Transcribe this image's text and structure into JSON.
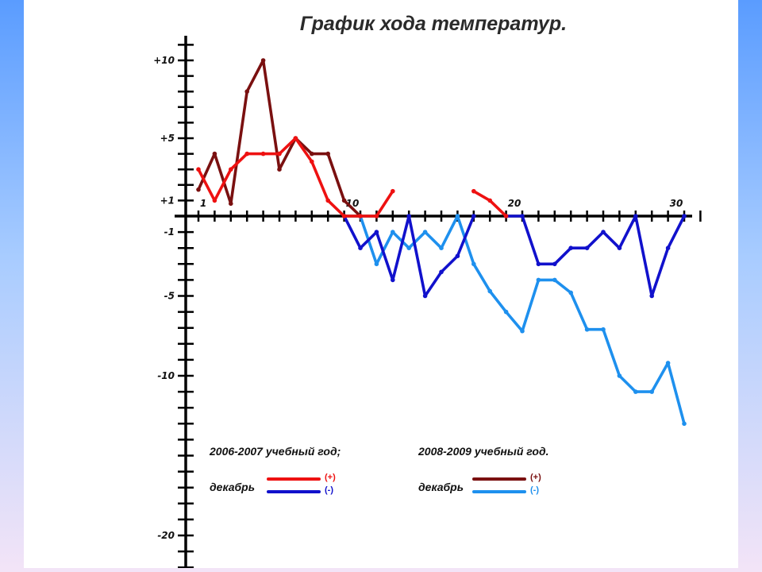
{
  "chart_data": {
    "type": "line",
    "title": "График хода температур.",
    "x": [
      1,
      2,
      3,
      4,
      5,
      6,
      7,
      8,
      9,
      10,
      11,
      12,
      13,
      14,
      15,
      16,
      17,
      18,
      19,
      20,
      21,
      22,
      23,
      24,
      25,
      26,
      27,
      28,
      29,
      30,
      31
    ],
    "x_tick_labels": [
      "1",
      "10",
      "20",
      "30"
    ],
    "y_tick_labels": [
      {
        "label": "+10",
        "value": 10
      },
      {
        "label": "+5",
        "value": 5
      },
      {
        "label": "+1",
        "value": 1
      },
      {
        "label": "-1",
        "value": -1
      },
      {
        "label": "-5",
        "value": -5
      },
      {
        "label": "-10",
        "value": -10
      },
      {
        "label": "-20",
        "value": -20
      }
    ],
    "ylim": [
      -22,
      11.5
    ],
    "grid": false,
    "legend": {
      "groups": [
        {
          "year": "2006-2007 учебный год;",
          "month": "декабрь",
          "entries": [
            {
              "mark": "(+)",
              "color": "#ee1111",
              "series": 0
            },
            {
              "mark": "(-)",
              "color": "#1111cc",
              "series": 1
            }
          ]
        },
        {
          "year": "2008-2009 учебный год.",
          "month": "декабрь",
          "entries": [
            {
              "mark": "(+)",
              "color": "#7a1010",
              "series": 2
            },
            {
              "mark": "(-)",
              "color": "#1e90ee",
              "series": 3
            }
          ]
        }
      ]
    },
    "series": [
      {
        "color": "#ee1111",
        "values": [
          3,
          1,
          3,
          4,
          4,
          4,
          5,
          3.5,
          1,
          0,
          0,
          0,
          1.6,
          null,
          null,
          null,
          null,
          1.6,
          1,
          0,
          null,
          null,
          null,
          null,
          null,
          null,
          null,
          null,
          null,
          null,
          null
        ]
      },
      {
        "color": "#1111cc",
        "values": [
          null,
          null,
          null,
          null,
          null,
          null,
          null,
          null,
          null,
          0,
          -2,
          -1,
          -4,
          0,
          -5,
          -3.5,
          -2.5,
          0,
          null,
          0,
          0,
          -3,
          -3,
          -2,
          -2,
          -1,
          -2,
          0,
          -5,
          -2,
          0
        ]
      },
      {
        "color": "#7a1010",
        "values": [
          1.7,
          4,
          0.8,
          8,
          10,
          3,
          5,
          4,
          4,
          1,
          0,
          null,
          null,
          null,
          null,
          null,
          null,
          null,
          null,
          null,
          null,
          null,
          null,
          null,
          null,
          null,
          null,
          null,
          null,
          null,
          null
        ]
      },
      {
        "color": "#1e90ee",
        "values": [
          null,
          null,
          null,
          null,
          null,
          null,
          null,
          null,
          null,
          null,
          0,
          -3,
          -1,
          -2,
          -1,
          -2,
          0,
          -3,
          -4.7,
          -6,
          -7.2,
          -4,
          -4,
          -4.8,
          -7.1,
          -7.1,
          -10,
          -11,
          -11,
          -9.2,
          -13
        ]
      }
    ]
  }
}
